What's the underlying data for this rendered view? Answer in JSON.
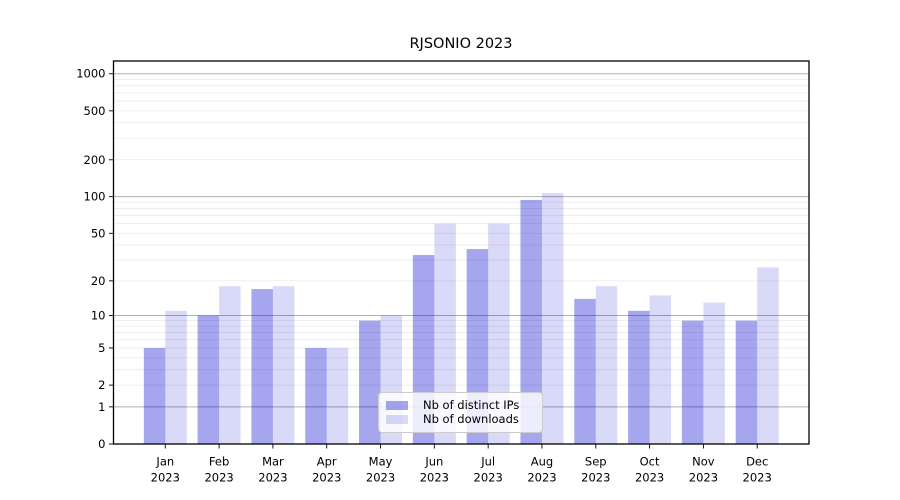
{
  "chart_data": {
    "type": "bar",
    "title": "RJSONIO 2023",
    "xlabel": "",
    "ylabel": "",
    "yscale": "log(x+1)",
    "ylim": [
      0,
      1265
    ],
    "yticks": [
      0,
      1,
      2,
      5,
      10,
      20,
      50,
      100,
      200,
      500,
      1000
    ],
    "grid": {
      "major": [
        1,
        10,
        100,
        1000
      ],
      "minor": [
        2,
        3,
        4,
        5,
        6,
        7,
        8,
        9,
        20,
        30,
        40,
        50,
        60,
        70,
        80,
        90,
        200,
        300,
        400,
        500,
        600,
        700,
        800,
        900
      ],
      "major_color": "#b0b0b0",
      "minor_color": "#e9e9e9"
    },
    "categories": [
      "Jan 2023",
      "Feb 2023",
      "Mar 2023",
      "Apr 2023",
      "May 2023",
      "Jun 2023",
      "Jul 2023",
      "Aug 2023",
      "Sep 2023",
      "Oct 2023",
      "Nov 2023",
      "Dec 2023"
    ],
    "series": [
      {
        "name": "Nb of distinct IPs",
        "color": "rgba(0,0,205,0.35)",
        "values": [
          5,
          10,
          17,
          5,
          9,
          33,
          37,
          94,
          14,
          11,
          9,
          9
        ]
      },
      {
        "name": "Nb of downloads",
        "color": "rgba(0,0,205,0.15)",
        "values": [
          11,
          18,
          18,
          5,
          10,
          60,
          60,
          107,
          18,
          15,
          13,
          26
        ]
      }
    ],
    "legend_position": "lower center",
    "axis_color": "#000000",
    "background_color": "#ffffff"
  }
}
